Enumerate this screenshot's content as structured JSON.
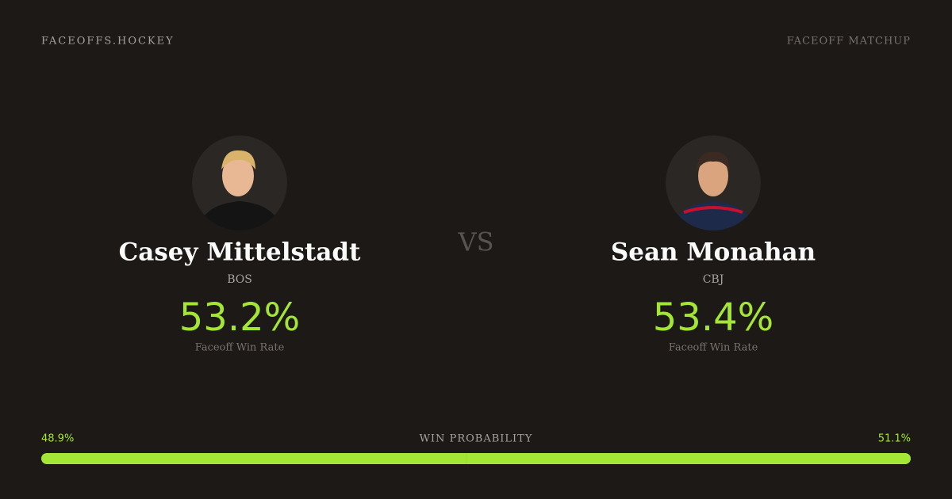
{
  "header": {
    "site": "FACEOFFS.HOCKEY",
    "label": "FACEOFF MATCHUP"
  },
  "players": [
    {
      "name": "Casey Mittelstadt",
      "team": "BOS",
      "win_rate": "53.2%",
      "win_rate_label": "Faceoff Win Rate"
    },
    {
      "name": "Sean Monahan",
      "team": "CBJ",
      "win_rate": "53.4%",
      "win_rate_label": "Faceoff Win Rate"
    }
  ],
  "vs": "VS",
  "win_probability": {
    "label": "WIN PROBABILITY",
    "values": [
      48.9,
      51.1
    ],
    "value_labels": [
      "48.9%",
      "51.1%"
    ],
    "color": "#a3e635"
  }
}
